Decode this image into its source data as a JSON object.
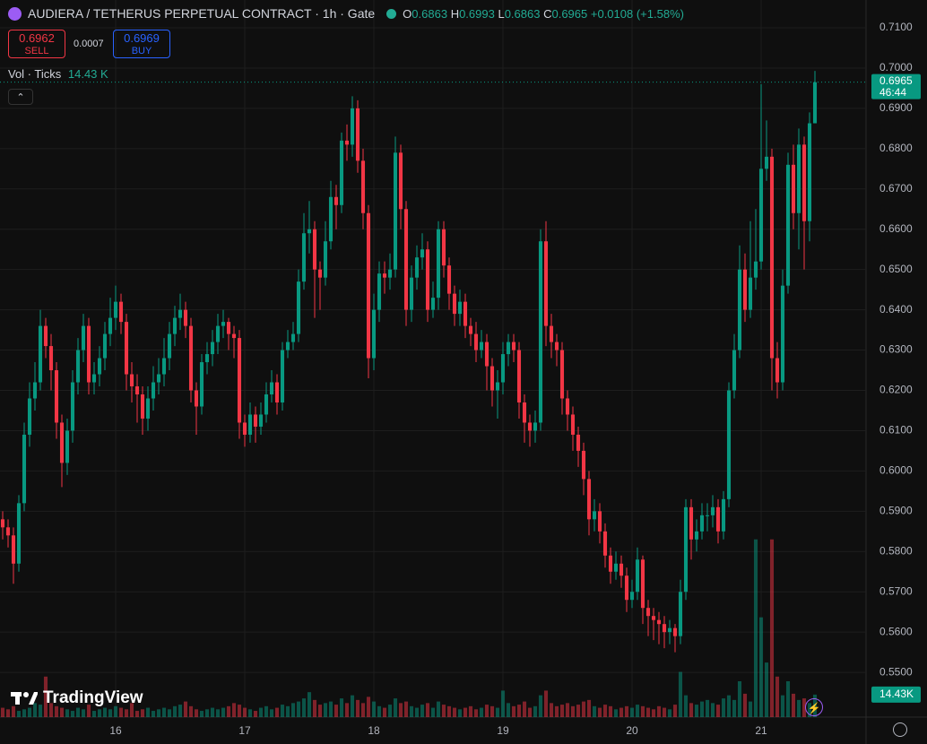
{
  "chart_data": {
    "type": "candlestick",
    "title": "AUDIERA / TETHERUS PERPETUAL CONTRACT · 1h · Gate",
    "ohlc_labels": [
      "O",
      "H",
      "L",
      "C"
    ],
    "change_label": "+0.0108 (+1.58%)",
    "sell_price": 0.6962,
    "sell_label": "SELL",
    "spread": 0.0007,
    "buy_price": 0.6969,
    "buy_label": "BUY",
    "volume_title": "Vol · Ticks",
    "volume_label": "14.43 K",
    "volume_tag": "14.43K",
    "countdown": "46:44",
    "up_color": "#089981",
    "down_color": "#f23645",
    "grid": true,
    "xlim": [
      -0.5,
      160.5
    ],
    "xticks": [
      {
        "value": 21,
        "label": "16"
      },
      {
        "value": 45,
        "label": "17"
      },
      {
        "value": 69,
        "label": "18"
      },
      {
        "value": 93,
        "label": "19"
      },
      {
        "value": 117,
        "label": "20"
      },
      {
        "value": 141,
        "label": "21"
      }
    ],
    "ylim": [
      0.5389,
      0.7169
    ],
    "yticks": [
      {
        "value": 0.55,
        "label": "0.5500"
      },
      {
        "value": 0.56,
        "label": "0.5600"
      },
      {
        "value": 0.57,
        "label": "0.5700"
      },
      {
        "value": 0.58,
        "label": "0.5800"
      },
      {
        "value": 0.59,
        "label": "0.5900"
      },
      {
        "value": 0.6,
        "label": "0.6000"
      },
      {
        "value": 0.61,
        "label": "0.6100"
      },
      {
        "value": 0.62,
        "label": "0.6200"
      },
      {
        "value": 0.63,
        "label": "0.6300"
      },
      {
        "value": 0.64,
        "label": "0.6400"
      },
      {
        "value": 0.65,
        "label": "0.6500"
      },
      {
        "value": 0.66,
        "label": "0.6600"
      },
      {
        "value": 0.67,
        "label": "0.6700"
      },
      {
        "value": 0.68,
        "label": "0.6800"
      },
      {
        "value": 0.69,
        "label": "0.6900"
      },
      {
        "value": 0.7,
        "label": "0.7000"
      },
      {
        "value": 0.71,
        "label": "0.7100"
      }
    ],
    "volume_ylim": [
      0,
      460000
    ],
    "open": [
      0.588,
      0.586,
      0.584,
      0.577,
      0.592,
      0.609,
      0.618,
      0.622,
      0.636,
      0.631,
      0.625,
      0.612,
      0.602,
      0.61,
      0.622,
      0.63,
      0.636,
      0.622,
      0.624,
      0.628,
      0.634,
      0.638,
      0.642,
      0.637,
      0.624,
      0.621,
      0.619,
      0.613,
      0.618,
      0.622,
      0.624,
      0.628,
      0.634,
      0.638,
      0.64,
      0.636,
      0.62,
      0.616,
      0.627,
      0.629,
      0.632,
      0.636,
      0.637,
      0.634,
      0.633,
      0.612,
      0.609,
      0.614,
      0.611,
      0.614,
      0.619,
      0.622,
      0.617,
      0.63,
      0.632,
      0.634,
      0.647,
      0.659,
      0.66,
      0.65,
      0.648,
      0.657,
      0.668,
      0.666,
      0.682,
      0.681,
      0.69,
      0.677,
      0.664,
      0.628,
      0.64,
      0.649,
      0.648,
      0.65,
      0.679,
      0.665,
      0.64,
      0.648,
      0.653,
      0.655,
      0.64,
      0.643,
      0.66,
      0.651,
      0.644,
      0.639,
      0.642,
      0.636,
      0.634,
      0.63,
      0.632,
      0.626,
      0.62,
      0.622,
      0.629,
      0.632,
      0.63,
      0.617,
      0.612,
      0.61,
      0.612,
      0.657,
      0.636,
      0.632,
      0.63,
      0.618,
      0.614,
      0.609,
      0.605,
      0.598,
      0.588,
      0.59,
      0.585,
      0.579,
      0.575,
      0.577,
      0.574,
      0.568,
      0.57,
      0.578,
      0.566,
      0.564,
      0.563,
      0.562,
      0.56,
      0.561,
      0.559,
      0.57,
      0.591,
      0.583,
      0.585,
      0.589,
      0.589,
      0.591,
      0.585,
      0.593,
      0.62,
      0.63,
      0.65,
      0.64,
      0.648,
      0.652,
      0.675,
      0.678,
      0.628,
      0.622,
      0.646,
      0.676,
      0.664,
      0.681,
      0.662,
      0.6863
    ],
    "high": [
      0.59,
      0.588,
      0.586,
      0.594,
      0.612,
      0.622,
      0.627,
      0.64,
      0.638,
      0.634,
      0.627,
      0.614,
      0.613,
      0.625,
      0.633,
      0.639,
      0.638,
      0.627,
      0.631,
      0.637,
      0.643,
      0.646,
      0.644,
      0.639,
      0.627,
      0.624,
      0.621,
      0.621,
      0.626,
      0.628,
      0.633,
      0.637,
      0.641,
      0.644,
      0.642,
      0.638,
      0.622,
      0.629,
      0.632,
      0.635,
      0.639,
      0.64,
      0.638,
      0.636,
      0.635,
      0.614,
      0.617,
      0.616,
      0.617,
      0.622,
      0.625,
      0.624,
      0.632,
      0.635,
      0.637,
      0.65,
      0.664,
      0.667,
      0.662,
      0.652,
      0.662,
      0.672,
      0.671,
      0.684,
      0.686,
      0.693,
      0.692,
      0.68,
      0.666,
      0.644,
      0.652,
      0.652,
      0.654,
      0.683,
      0.681,
      0.667,
      0.651,
      0.656,
      0.659,
      0.657,
      0.647,
      0.662,
      0.662,
      0.653,
      0.646,
      0.645,
      0.644,
      0.638,
      0.637,
      0.635,
      0.634,
      0.628,
      0.625,
      0.632,
      0.634,
      0.634,
      0.632,
      0.619,
      0.614,
      0.615,
      0.66,
      0.662,
      0.639,
      0.634,
      0.632,
      0.62,
      0.616,
      0.611,
      0.607,
      0.6,
      0.593,
      0.592,
      0.587,
      0.581,
      0.58,
      0.579,
      0.576,
      0.573,
      0.581,
      0.579,
      0.568,
      0.566,
      0.565,
      0.564,
      0.563,
      0.562,
      0.573,
      0.593,
      0.593,
      0.588,
      0.592,
      0.592,
      0.594,
      0.593,
      0.595,
      0.622,
      0.634,
      0.656,
      0.654,
      0.662,
      0.665,
      0.696,
      0.687,
      0.68,
      0.632,
      0.65,
      0.679,
      0.681,
      0.685,
      0.683,
      0.689,
      0.6993
    ],
    "low": [
      0.583,
      0.581,
      0.572,
      0.575,
      0.59,
      0.606,
      0.615,
      0.62,
      0.628,
      0.62,
      0.608,
      0.596,
      0.599,
      0.607,
      0.619,
      0.627,
      0.619,
      0.619,
      0.621,
      0.625,
      0.631,
      0.635,
      0.634,
      0.62,
      0.617,
      0.612,
      0.609,
      0.61,
      0.615,
      0.619,
      0.621,
      0.625,
      0.631,
      0.635,
      0.633,
      0.617,
      0.609,
      0.614,
      0.624,
      0.626,
      0.629,
      0.633,
      0.63,
      0.628,
      0.608,
      0.606,
      0.607,
      0.607,
      0.609,
      0.612,
      0.617,
      0.614,
      0.615,
      0.628,
      0.63,
      0.632,
      0.645,
      0.654,
      0.638,
      0.64,
      0.646,
      0.655,
      0.66,
      0.664,
      0.677,
      0.678,
      0.674,
      0.66,
      0.623,
      0.625,
      0.637,
      0.644,
      0.645,
      0.648,
      0.66,
      0.636,
      0.637,
      0.645,
      0.65,
      0.637,
      0.638,
      0.64,
      0.648,
      0.64,
      0.636,
      0.636,
      0.633,
      0.631,
      0.627,
      0.628,
      0.62,
      0.616,
      0.613,
      0.619,
      0.626,
      0.627,
      0.613,
      0.607,
      0.606,
      0.607,
      0.61,
      0.631,
      0.628,
      0.626,
      0.614,
      0.61,
      0.605,
      0.601,
      0.594,
      0.584,
      0.585,
      0.582,
      0.576,
      0.572,
      0.573,
      0.571,
      0.565,
      0.566,
      0.568,
      0.562,
      0.559,
      0.558,
      0.557,
      0.556,
      0.557,
      0.555,
      0.557,
      0.568,
      0.578,
      0.58,
      0.583,
      0.585,
      0.586,
      0.582,
      0.583,
      0.591,
      0.618,
      0.628,
      0.637,
      0.638,
      0.645,
      0.65,
      0.672,
      0.62,
      0.618,
      0.62,
      0.644,
      0.66,
      0.655,
      0.65,
      0.657,
      0.6863
    ],
    "close": [
      0.586,
      0.584,
      0.577,
      0.592,
      0.609,
      0.618,
      0.622,
      0.636,
      0.631,
      0.625,
      0.612,
      0.602,
      0.61,
      0.622,
      0.63,
      0.636,
      0.622,
      0.624,
      0.628,
      0.634,
      0.638,
      0.642,
      0.637,
      0.624,
      0.621,
      0.619,
      0.613,
      0.618,
      0.622,
      0.624,
      0.628,
      0.634,
      0.638,
      0.64,
      0.636,
      0.62,
      0.616,
      0.627,
      0.629,
      0.632,
      0.636,
      0.637,
      0.634,
      0.633,
      0.612,
      0.609,
      0.614,
      0.611,
      0.614,
      0.619,
      0.622,
      0.617,
      0.63,
      0.632,
      0.634,
      0.647,
      0.659,
      0.66,
      0.65,
      0.648,
      0.657,
      0.668,
      0.666,
      0.682,
      0.681,
      0.69,
      0.677,
      0.664,
      0.628,
      0.64,
      0.649,
      0.648,
      0.65,
      0.679,
      0.665,
      0.64,
      0.648,
      0.653,
      0.655,
      0.64,
      0.643,
      0.66,
      0.651,
      0.644,
      0.639,
      0.642,
      0.636,
      0.634,
      0.63,
      0.632,
      0.626,
      0.62,
      0.622,
      0.629,
      0.632,
      0.63,
      0.617,
      0.612,
      0.61,
      0.612,
      0.657,
      0.636,
      0.632,
      0.63,
      0.618,
      0.614,
      0.609,
      0.605,
      0.598,
      0.588,
      0.59,
      0.585,
      0.579,
      0.575,
      0.577,
      0.574,
      0.568,
      0.57,
      0.578,
      0.566,
      0.564,
      0.563,
      0.562,
      0.56,
      0.561,
      0.559,
      0.57,
      0.591,
      0.583,
      0.585,
      0.589,
      0.589,
      0.591,
      0.585,
      0.593,
      0.62,
      0.63,
      0.65,
      0.64,
      0.648,
      0.652,
      0.675,
      0.678,
      0.628,
      0.622,
      0.646,
      0.676,
      0.664,
      0.681,
      0.662,
      0.6863,
      0.6965
    ],
    "volume": [
      6000,
      5000,
      7000,
      4000,
      5000,
      6000,
      9000,
      8000,
      26000,
      9000,
      7000,
      6000,
      5000,
      4000,
      6000,
      5000,
      8000,
      4000,
      5000,
      6000,
      5000,
      7000,
      6000,
      5000,
      9000,
      4000,
      5000,
      6000,
      4000,
      5000,
      6000,
      5000,
      7000,
      8000,
      10000,
      7000,
      5000,
      4000,
      5000,
      6000,
      5000,
      6000,
      7000,
      9000,
      8000,
      6000,
      5000,
      4000,
      6000,
      7000,
      5000,
      6000,
      8000,
      7000,
      9000,
      10000,
      12000,
      16000,
      11000,
      8000,
      9000,
      10000,
      8000,
      12000,
      9000,
      14000,
      11000,
      9000,
      13000,
      10000,
      7000,
      6000,
      8000,
      12000,
      9000,
      10000,
      7000,
      6000,
      8000,
      9000,
      6000,
      10000,
      8000,
      7000,
      6000,
      5000,
      6000,
      7000,
      5000,
      6000,
      8000,
      7000,
      6000,
      17000,
      9000,
      7000,
      8000,
      10000,
      6000,
      7000,
      14000,
      17000,
      9000,
      7000,
      8000,
      9000,
      7000,
      8000,
      10000,
      11000,
      7000,
      6000,
      8000,
      7000,
      5000,
      6000,
      7000,
      6000,
      8000,
      7000,
      6000,
      5000,
      7000,
      6000,
      5000,
      8000,
      29000,
      14000,
      9000,
      8000,
      10000,
      11000,
      9000,
      8000,
      12000,
      14000,
      11000,
      23000,
      15000,
      10000,
      114000,
      64000,
      35000,
      114000,
      26000,
      14000,
      23000,
      15000,
      11000,
      12000,
      9000,
      14430
    ]
  },
  "branding": "TradingView"
}
